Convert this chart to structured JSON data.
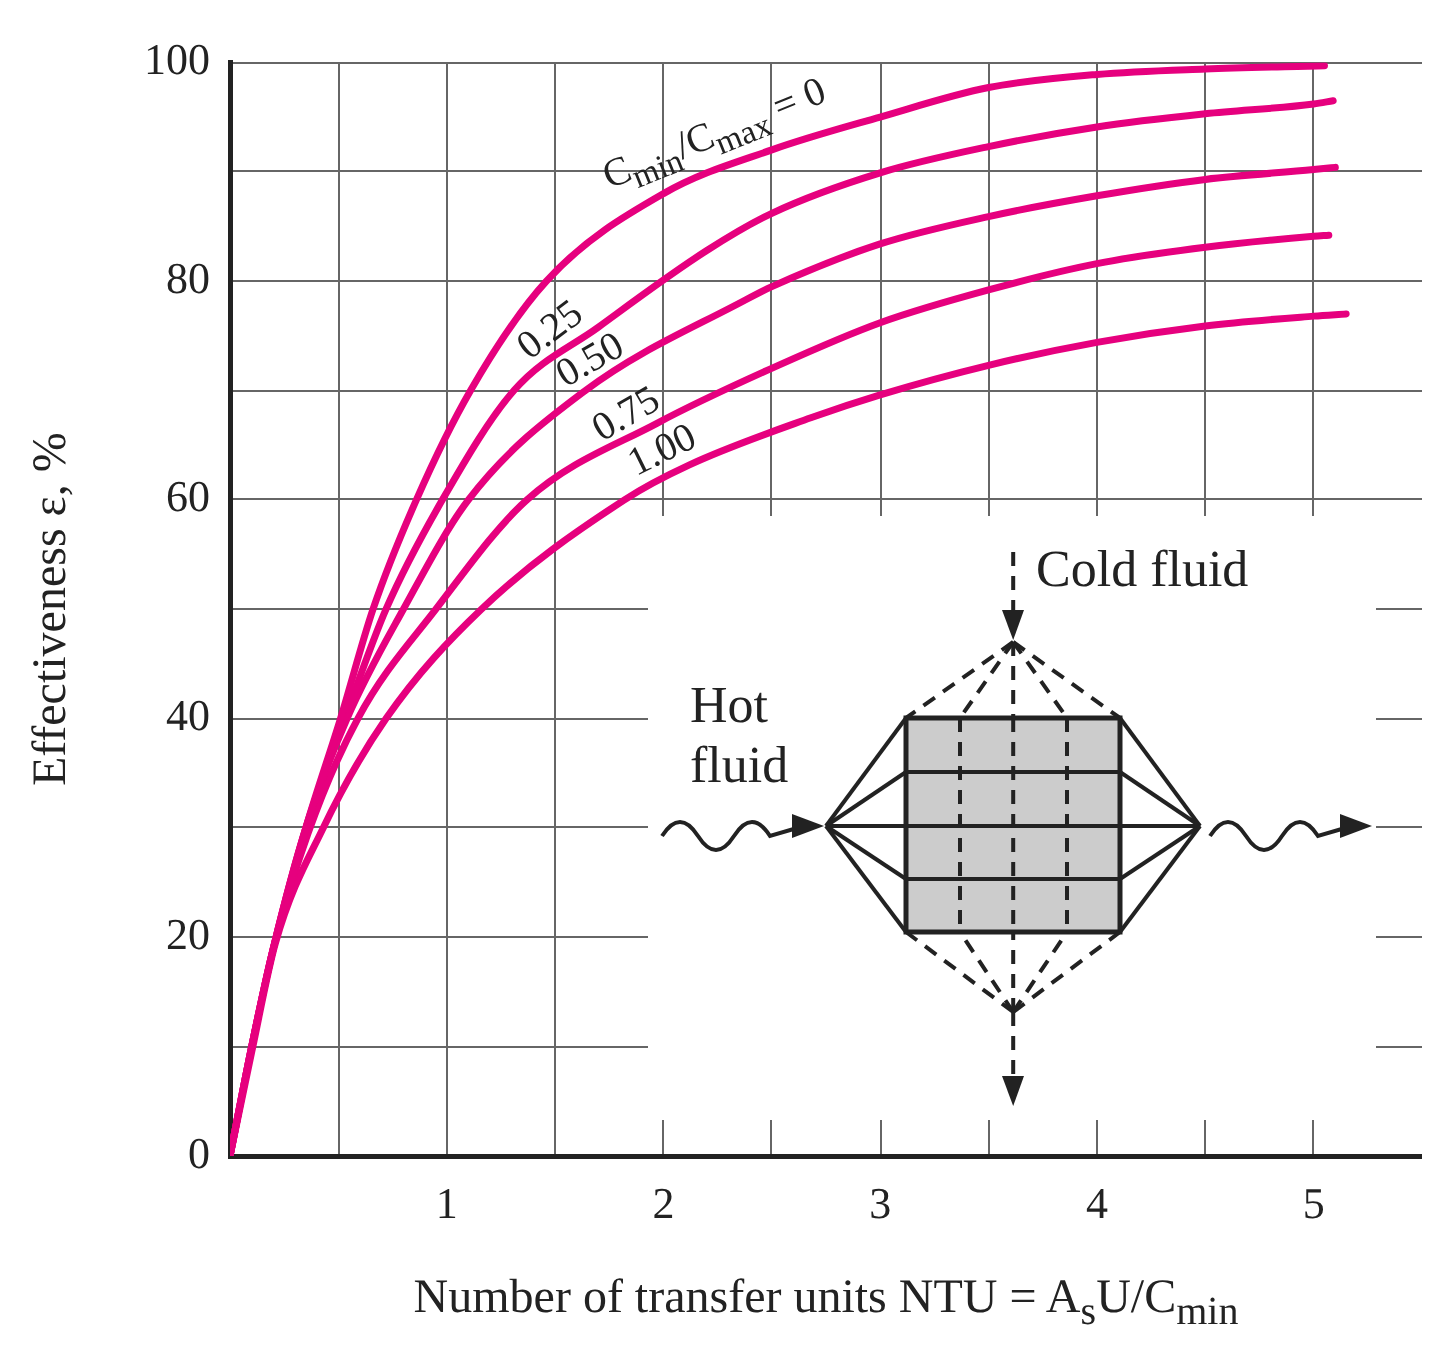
{
  "chart_data": {
    "type": "line",
    "xlabel": "Number of transfer units NTU = A$_{s}$U/C$_{min}$",
    "ylabel": "Effectiveness ε, %",
    "xlim": [
      0,
      5.5
    ],
    "xticks": [
      {
        "value": 0.5,
        "label": null
      },
      1,
      {
        "value": 1.5,
        "label": null
      },
      2,
      {
        "value": 2.5,
        "label": null
      },
      3,
      {
        "value": 3.5,
        "label": null
      },
      4,
      {
        "value": 4.5,
        "label": null
      },
      5
    ],
    "ylim": [
      0,
      100
    ],
    "yticks": [
      0,
      {
        "value": 10,
        "label": null
      },
      20,
      {
        "value": 30,
        "label": null
      },
      40,
      {
        "value": 50,
        "label": null
      },
      60,
      {
        "value": 70,
        "label": null
      },
      80,
      {
        "value": 90,
        "label": null
      },
      100
    ],
    "grid": true,
    "marker": "none",
    "line_style": "solid",
    "annotations": [
      "Cold fluid",
      "Hot fluid"
    ],
    "series": [
      {
        "name": "C$_{min}$/C$_{max}$ = 0",
        "color": "#e6007e",
        "x": [
          0,
          0.1,
          0.2,
          0.35,
          0.51,
          0.66,
          0.86,
          1.11,
          1.46,
          2,
          2.5,
          3,
          3.5,
          4,
          4.5,
          5.05
        ],
        "values": [
          0,
          10,
          19,
          30,
          40,
          50,
          60,
          70,
          80,
          88,
          92,
          95,
          97.7,
          98.9,
          99.4,
          99.7
        ]
      },
      {
        "name": "0.25",
        "color": "#e6007e",
        "x": [
          0,
          0.1,
          0.2,
          0.35,
          0.53,
          0.72,
          0.98,
          1.31,
          1.7,
          2.2,
          2.5,
          3,
          3.5,
          4,
          4.5,
          5,
          5.09
        ],
        "values": [
          0,
          10,
          19,
          30,
          40,
          50,
          60,
          70,
          75.8,
          82.8,
          86.2,
          89.9,
          92.3,
          94.1,
          95.3,
          96.2,
          96.5
        ]
      },
      {
        "name": "0.50",
        "color": "#e6007e",
        "x": [
          0,
          0.1,
          0.2,
          0.35,
          0.54,
          0.8,
          1.1,
          1.64,
          2.38,
          2.5,
          3,
          3.5,
          4,
          4.5,
          5,
          5.1
        ],
        "values": [
          0,
          10,
          19,
          30,
          40,
          50,
          60,
          70,
          78.3,
          79.5,
          83.4,
          85.9,
          87.8,
          89.3,
          90.2,
          90.4
        ]
      },
      {
        "name": "0.75",
        "color": "#e6007e",
        "x": [
          0,
          0.1,
          0.2,
          0.36,
          0.59,
          0.95,
          1.37,
          1.97,
          2.53,
          3,
          3.5,
          4,
          4.5,
          5,
          5.07
        ],
        "values": [
          0,
          10,
          19,
          29.5,
          40,
          50,
          60,
          67,
          72.3,
          76.2,
          79.2,
          81.6,
          83.1,
          84.1,
          84.2
        ]
      },
      {
        "name": "1.00",
        "color": "#e6007e",
        "x": [
          0,
          0.1,
          0.21,
          0.43,
          0.72,
          1.16,
          1.82,
          2.12,
          2.68,
          3,
          3.5,
          4,
          4.5,
          5,
          5.15
        ],
        "values": [
          0,
          9.5,
          19.5,
          30,
          40,
          50,
          60,
          63.2,
          67.5,
          69.6,
          72.3,
          74.4,
          75.9,
          76.8,
          77
        ]
      }
    ]
  }
}
